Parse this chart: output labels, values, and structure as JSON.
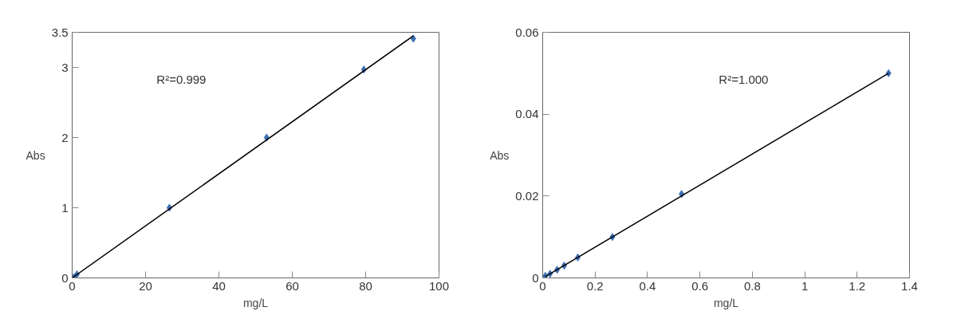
{
  "chart_data": [
    {
      "type": "scatter",
      "xlabel": "mg/L",
      "ylabel": "Abs",
      "annotations": [
        "R²=0.999"
      ],
      "xlim": [
        0,
        100
      ],
      "ylim": [
        0,
        3.5
      ],
      "xticks": [
        0,
        20,
        40,
        60,
        80,
        100
      ],
      "yticks": [
        0,
        1,
        2,
        3,
        3.5
      ],
      "grid": false,
      "series": [
        {
          "color": "#3d6fb5",
          "marker": "diamond",
          "x": [
            0.5,
            1.3,
            26.5,
            53,
            79.5,
            93
          ],
          "values": [
            0.01,
            0.05,
            1.0,
            2.0,
            2.97,
            3.41
          ]
        },
        {
          "type": "line",
          "color": "#000000",
          "x": [
            0,
            93
          ],
          "values": [
            0,
            3.45
          ]
        }
      ]
    },
    {
      "type": "scatter",
      "xlabel": "mg/L",
      "ylabel": "Abs",
      "annotations": [
        "R²=1.000"
      ],
      "xlim": [
        0,
        1.4
      ],
      "ylim": [
        0,
        0.06
      ],
      "xticks": [
        0,
        0.2,
        0.4,
        0.6,
        0.8,
        1,
        1.2,
        1.4
      ],
      "yticks": [
        0,
        0.02,
        0.04,
        0.06
      ],
      "grid": false,
      "series": [
        {
          "color": "#3d6fb5",
          "marker": "diamond",
          "x": [
            0.01,
            0.028,
            0.055,
            0.082,
            0.134,
            0.266,
            0.53,
            1.32
          ],
          "values": [
            0.0005,
            0.001,
            0.002,
            0.003,
            0.005,
            0.01,
            0.0205,
            0.05
          ]
        },
        {
          "type": "line",
          "color": "#000000",
          "x": [
            0.01,
            1.32
          ],
          "values": [
            0.0003,
            0.05
          ]
        }
      ]
    }
  ]
}
